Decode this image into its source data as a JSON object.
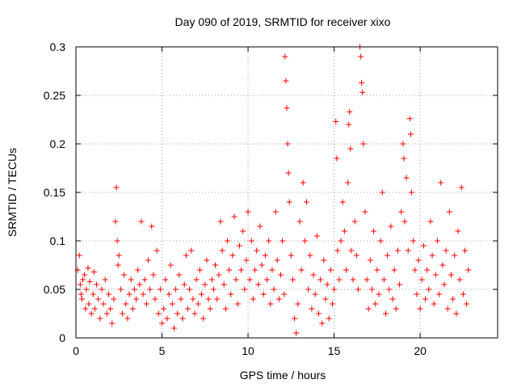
{
  "chart_data": {
    "type": "scatter",
    "title": "Day 090 of 2019, SRMTID for receiver xixo",
    "xlabel": "GPS time / hours",
    "ylabel": "SRMTID / TECUs",
    "xlim": [
      0,
      24.5
    ],
    "ylim": [
      0,
      0.3
    ],
    "xticks": [
      0,
      5,
      10,
      15,
      20
    ],
    "xtick_labels": [
      "0",
      "5",
      "10",
      "15",
      "20"
    ],
    "yticks": [
      0,
      0.05,
      0.1,
      0.15,
      0.2,
      0.25,
      0.3
    ],
    "ytick_labels": [
      "0",
      "0.05",
      "0.1",
      "0.15",
      "0.2",
      "0.25",
      "0.3"
    ],
    "grid": true,
    "marker": "plus",
    "color": "#ff0000",
    "series": [
      {
        "values": [
          [
            0.1,
            0.07
          ],
          [
            0.2,
            0.085
          ],
          [
            0.25,
            0.055
          ],
          [
            0.3,
            0.045
          ],
          [
            0.35,
            0.04
          ],
          [
            0.4,
            0.06
          ],
          [
            0.5,
            0.065
          ],
          [
            0.55,
            0.03
          ],
          [
            0.6,
            0.05
          ],
          [
            0.7,
            0.072
          ],
          [
            0.75,
            0.035
          ],
          [
            0.8,
            0.058
          ],
          [
            0.9,
            0.025
          ],
          [
            1.0,
            0.045
          ],
          [
            1.05,
            0.068
          ],
          [
            1.1,
            0.03
          ],
          [
            1.2,
            0.055
          ],
          [
            1.3,
            0.04
          ],
          [
            1.4,
            0.02
          ],
          [
            1.5,
            0.05
          ],
          [
            1.6,
            0.035
          ],
          [
            1.7,
            0.06
          ],
          [
            1.8,
            0.025
          ],
          [
            1.9,
            0.045
          ],
          [
            2.0,
            0.03
          ],
          [
            2.1,
            0.015
          ],
          [
            2.2,
            0.04
          ],
          [
            2.3,
            0.12
          ],
          [
            2.35,
            0.155
          ],
          [
            2.4,
            0.1
          ],
          [
            2.45,
            0.075
          ],
          [
            2.5,
            0.085
          ],
          [
            2.6,
            0.05
          ],
          [
            2.7,
            0.025
          ],
          [
            2.8,
            0.065
          ],
          [
            2.9,
            0.035
          ],
          [
            3.0,
            0.02
          ],
          [
            3.1,
            0.045
          ],
          [
            3.2,
            0.06
          ],
          [
            3.3,
            0.03
          ],
          [
            3.4,
            0.05
          ],
          [
            3.5,
            0.04
          ],
          [
            3.6,
            0.07
          ],
          [
            3.7,
            0.055
          ],
          [
            3.8,
            0.12
          ],
          [
            3.9,
            0.045
          ],
          [
            4.0,
            0.06
          ],
          [
            4.1,
            0.035
          ],
          [
            4.2,
            0.08
          ],
          [
            4.3,
            0.05
          ],
          [
            4.4,
            0.115
          ],
          [
            4.5,
            0.065
          ],
          [
            4.6,
            0.04
          ],
          [
            4.7,
            0.09
          ],
          [
            4.8,
            0.025
          ],
          [
            4.9,
            0.05
          ],
          [
            5.0,
            0.015
          ],
          [
            5.1,
            0.03
          ],
          [
            5.2,
            0.06
          ],
          [
            5.3,
            0.02
          ],
          [
            5.4,
            0.045
          ],
          [
            5.5,
            0.075
          ],
          [
            5.6,
            0.035
          ],
          [
            5.7,
            0.01
          ],
          [
            5.8,
            0.05
          ],
          [
            5.9,
            0.025
          ],
          [
            6.0,
            0.065
          ],
          [
            6.1,
            0.04
          ],
          [
            6.2,
            0.02
          ],
          [
            6.3,
            0.055
          ],
          [
            6.4,
            0.085
          ],
          [
            6.5,
            0.03
          ],
          [
            6.6,
            0.05
          ],
          [
            6.7,
            0.09
          ],
          [
            6.8,
            0.04
          ],
          [
            6.9,
            0.025
          ],
          [
            7.0,
            0.06
          ],
          [
            7.1,
            0.035
          ],
          [
            7.2,
            0.07
          ],
          [
            7.3,
            0.045
          ],
          [
            7.4,
            0.02
          ],
          [
            7.5,
            0.055
          ],
          [
            7.6,
            0.08
          ],
          [
            7.7,
            0.04
          ],
          [
            7.8,
            0.03
          ],
          [
            7.9,
            0.06
          ],
          [
            8.0,
            0.05
          ],
          [
            8.1,
            0.075
          ],
          [
            8.2,
            0.04
          ],
          [
            8.3,
            0.065
          ],
          [
            8.4,
            0.12
          ],
          [
            8.5,
            0.09
          ],
          [
            8.6,
            0.055
          ],
          [
            8.7,
            0.03
          ],
          [
            8.8,
            0.1
          ],
          [
            8.9,
            0.07
          ],
          [
            9.0,
            0.045
          ],
          [
            9.1,
            0.085
          ],
          [
            9.2,
            0.125
          ],
          [
            9.3,
            0.06
          ],
          [
            9.4,
            0.035
          ],
          [
            9.5,
            0.095
          ],
          [
            9.6,
            0.07
          ],
          [
            9.7,
            0.11
          ],
          [
            9.8,
            0.05
          ],
          [
            9.9,
            0.08
          ],
          [
            10.0,
            0.13
          ],
          [
            10.1,
            0.06
          ],
          [
            10.2,
            0.1
          ],
          [
            10.3,
            0.04
          ],
          [
            10.4,
            0.07
          ],
          [
            10.5,
            0.09
          ],
          [
            10.6,
            0.055
          ],
          [
            10.7,
            0.115
          ],
          [
            10.8,
            0.075
          ],
          [
            10.9,
            0.045
          ],
          [
            11.0,
            0.085
          ],
          [
            11.1,
            0.06
          ],
          [
            11.2,
            0.1
          ],
          [
            11.3,
            0.035
          ],
          [
            11.4,
            0.07
          ],
          [
            11.5,
            0.05
          ],
          [
            11.6,
            0.13
          ],
          [
            11.7,
            0.08
          ],
          [
            11.8,
            0.04
          ],
          [
            11.9,
            0.065
          ],
          [
            12.0,
            0.1
          ],
          [
            12.1,
            0.045
          ],
          [
            12.15,
            0.29
          ],
          [
            12.2,
            0.265
          ],
          [
            12.25,
            0.237
          ],
          [
            12.3,
            0.2
          ],
          [
            12.35,
            0.17
          ],
          [
            12.4,
            0.14
          ],
          [
            12.5,
            0.085
          ],
          [
            12.6,
            0.06
          ],
          [
            12.7,
            0.02
          ],
          [
            12.8,
            0.005
          ],
          [
            12.9,
            0.035
          ],
          [
            13.0,
            0.12
          ],
          [
            13.1,
            0.07
          ],
          [
            13.2,
            0.16
          ],
          [
            13.3,
            0.1
          ],
          [
            13.4,
            0.14
          ],
          [
            13.5,
            0.05
          ],
          [
            13.6,
            0.085
          ],
          [
            13.7,
            0.03
          ],
          [
            13.8,
            0.065
          ],
          [
            13.9,
            0.045
          ],
          [
            14.0,
            0.105
          ],
          [
            14.1,
            0.025
          ],
          [
            14.2,
            0.06
          ],
          [
            14.3,
            0.015
          ],
          [
            14.4,
            0.08
          ],
          [
            14.5,
            0.04
          ],
          [
            14.6,
            0.055
          ],
          [
            14.7,
            0.02
          ],
          [
            14.8,
            0.07
          ],
          [
            14.9,
            0.035
          ],
          [
            15.0,
            0.05
          ],
          [
            15.1,
            0.223
          ],
          [
            15.15,
            0.185
          ],
          [
            15.2,
            0.09
          ],
          [
            15.3,
            0.06
          ],
          [
            15.4,
            0.1
          ],
          [
            15.5,
            0.14
          ],
          [
            15.6,
            0.11
          ],
          [
            15.7,
            0.07
          ],
          [
            15.8,
            0.16
          ],
          [
            15.85,
            0.22
          ],
          [
            15.9,
            0.233
          ],
          [
            15.95,
            0.195
          ],
          [
            16.0,
            0.09
          ],
          [
            16.1,
            0.06
          ],
          [
            16.2,
            0.12
          ],
          [
            16.3,
            0.085
          ],
          [
            16.4,
            0.05
          ],
          [
            16.5,
            0.3
          ],
          [
            16.55,
            0.29
          ],
          [
            16.6,
            0.263
          ],
          [
            16.65,
            0.253
          ],
          [
            16.7,
            0.2
          ],
          [
            16.8,
            0.13
          ],
          [
            16.9,
            0.06
          ],
          [
            17.0,
            0.03
          ],
          [
            17.1,
            0.08
          ],
          [
            17.2,
            0.05
          ],
          [
            17.3,
            0.11
          ],
          [
            17.4,
            0.035
          ],
          [
            17.5,
            0.07
          ],
          [
            17.6,
            0.045
          ],
          [
            17.7,
            0.1
          ],
          [
            17.8,
            0.15
          ],
          [
            17.9,
            0.06
          ],
          [
            18.0,
            0.025
          ],
          [
            18.1,
            0.085
          ],
          [
            18.2,
            0.05
          ],
          [
            18.3,
            0.115
          ],
          [
            18.4,
            0.04
          ],
          [
            18.5,
            0.07
          ],
          [
            18.6,
            0.03
          ],
          [
            18.7,
            0.09
          ],
          [
            18.8,
            0.055
          ],
          [
            18.9,
            0.13
          ],
          [
            19.0,
            0.2
          ],
          [
            19.05,
            0.185
          ],
          [
            19.1,
            0.12
          ],
          [
            19.2,
            0.165
          ],
          [
            19.3,
            0.09
          ],
          [
            19.4,
            0.226
          ],
          [
            19.45,
            0.21
          ],
          [
            19.5,
            0.15
          ],
          [
            19.6,
            0.1
          ],
          [
            19.7,
            0.07
          ],
          [
            19.8,
            0.045
          ],
          [
            19.9,
            0.08
          ],
          [
            20.0,
            0.03
          ],
          [
            20.1,
            0.06
          ],
          [
            20.2,
            0.095
          ],
          [
            20.3,
            0.04
          ],
          [
            20.4,
            0.07
          ],
          [
            20.5,
            0.05
          ],
          [
            20.6,
            0.12
          ],
          [
            20.7,
            0.085
          ],
          [
            20.8,
            0.035
          ],
          [
            20.9,
            0.065
          ],
          [
            21.0,
            0.1
          ],
          [
            21.1,
            0.045
          ],
          [
            21.2,
            0.16
          ],
          [
            21.3,
            0.075
          ],
          [
            21.4,
            0.055
          ],
          [
            21.5,
            0.09
          ],
          [
            21.6,
            0.03
          ],
          [
            21.7,
            0.13
          ],
          [
            21.8,
            0.065
          ],
          [
            21.9,
            0.04
          ],
          [
            22.0,
            0.085
          ],
          [
            22.1,
            0.025
          ],
          [
            22.2,
            0.11
          ],
          [
            22.3,
            0.06
          ],
          [
            22.4,
            0.155
          ],
          [
            22.5,
            0.045
          ],
          [
            22.6,
            0.09
          ],
          [
            22.7,
            0.035
          ],
          [
            22.8,
            0.07
          ]
        ]
      }
    ]
  }
}
